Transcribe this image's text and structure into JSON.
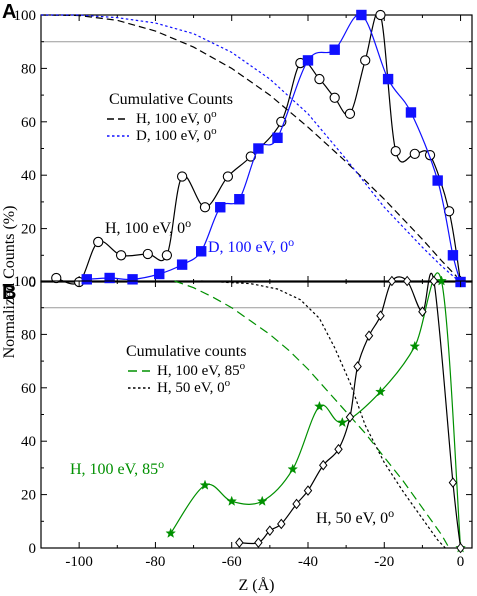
{
  "chart_data": [
    {
      "panel": "A",
      "type": "line",
      "xlim": [
        -110,
        3
      ],
      "ylim": [
        0,
        100
      ],
      "yticks": [
        0,
        20,
        40,
        60,
        80,
        100
      ],
      "reference_line_y": 90,
      "legend_title": "Cumulative Counts",
      "legend_placement": "center-left",
      "series": [
        {
          "name": "H, 100 eV, 0°",
          "kind": "cumulative",
          "style": "dashed",
          "color": "#000000",
          "points": [
            [
              -110,
              100
            ],
            [
              -100,
              99.8
            ],
            [
              -90,
              98
            ],
            [
              -80,
              94
            ],
            [
              -70,
              88
            ],
            [
              -60,
              80
            ],
            [
              -50,
              70
            ],
            [
              -40,
              58
            ],
            [
              -30,
              45
            ],
            [
              -20,
              31
            ],
            [
              -10,
              16
            ],
            [
              -5,
              8
            ],
            [
              -1,
              2
            ]
          ]
        },
        {
          "name": "D, 100 eV, 0°",
          "kind": "cumulative",
          "style": "dotted",
          "color": "#1010ff",
          "points": [
            [
              -110,
              100
            ],
            [
              -100,
              100
            ],
            [
              -90,
              99
            ],
            [
              -80,
              97
            ],
            [
              -70,
              93
            ],
            [
              -60,
              86
            ],
            [
              -50,
              76
            ],
            [
              -40,
              63
            ],
            [
              -30,
              46
            ],
            [
              -20,
              28
            ],
            [
              -10,
              13
            ],
            [
              -5,
              6
            ],
            [
              -1,
              1
            ]
          ]
        },
        {
          "name": "H, 100 eV, 0°",
          "kind": "distribution",
          "marker": "circle",
          "color": "#000000",
          "label": "H, 100 eV, 0",
          "label_sup": "o",
          "points": [
            [
              -106,
              1.5
            ],
            [
              -100,
              0
            ],
            [
              -95,
              15
            ],
            [
              -89,
              10
            ],
            [
              -82,
              10.5
            ],
            [
              -77,
              10
            ],
            [
              -73,
              39.5
            ],
            [
              -67,
              28
            ],
            [
              -61,
              39.5
            ],
            [
              -55,
              47
            ],
            [
              -47,
              60
            ],
            [
              -42,
              82
            ],
            [
              -37,
              76
            ],
            [
              -33,
              69
            ],
            [
              -29,
              63
            ],
            [
              -25,
              83
            ],
            [
              -21,
              100
            ],
            [
              -17,
              49
            ],
            [
              -12,
              48
            ],
            [
              -8,
              47.5
            ],
            [
              -3,
              26.5
            ],
            [
              0,
              0
            ]
          ]
        },
        {
          "name": "D, 100 eV, 0°",
          "kind": "distribution",
          "marker": "square",
          "color": "#1010ff",
          "label": "D, 100 eV, 0",
          "label_sup": "o",
          "points": [
            [
              -98,
              1
            ],
            [
              -92,
              1.5
            ],
            [
              -86,
              1
            ],
            [
              -79,
              3
            ],
            [
              -73,
              6.5
            ],
            [
              -68,
              11.5
            ],
            [
              -63,
              28
            ],
            [
              -58,
              31
            ],
            [
              -53,
              50
            ],
            [
              -48,
              54
            ],
            [
              -40,
              83
            ],
            [
              -33,
              87
            ],
            [
              -26,
              100
            ],
            [
              -19,
              76
            ],
            [
              -13,
              63.5
            ],
            [
              -6,
              38
            ],
            [
              -2,
              10
            ],
            [
              0,
              0
            ]
          ]
        }
      ]
    },
    {
      "panel": "B",
      "type": "line",
      "xlim": [
        -110,
        3
      ],
      "ylim": [
        0,
        100
      ],
      "xticks": [
        -100,
        -80,
        -60,
        -40,
        -20,
        0
      ],
      "yticks": [
        0,
        20,
        40,
        60,
        80,
        100
      ],
      "xlabel": "Z (Å)",
      "reference_line_y": 90,
      "legend_title": "Cumulative counts",
      "legend_placement": "top-left",
      "series": [
        {
          "name": "H, 100 eV, 85°",
          "kind": "cumulative",
          "style": "long-dashed",
          "color": "#009000",
          "points": [
            [
              -75,
              100
            ],
            [
              -70,
              97.5
            ],
            [
              -65,
              94
            ],
            [
              -60,
              90
            ],
            [
              -55,
              85
            ],
            [
              -50,
              80
            ],
            [
              -45,
              74
            ],
            [
              -40,
              67
            ],
            [
              -35,
              59
            ],
            [
              -30,
              51
            ],
            [
              -25,
              43
            ],
            [
              -20,
              34
            ],
            [
              -15,
              25
            ],
            [
              -10,
              15
            ],
            [
              -5,
              5
            ],
            [
              -3,
              0
            ]
          ]
        },
        {
          "name": "H, 50 eV, 0°",
          "kind": "cumulative",
          "style": "dotted",
          "color": "#000000",
          "points": [
            [
              -68,
              100
            ],
            [
              -55,
              99
            ],
            [
              -48,
              97
            ],
            [
              -42,
              93
            ],
            [
              -37,
              86
            ],
            [
              -33,
              75
            ],
            [
              -29,
              62
            ],
            [
              -25,
              46
            ],
            [
              -20,
              32
            ],
            [
              -15,
              21
            ],
            [
              -10,
              11
            ],
            [
              -6,
              3
            ],
            [
              -4,
              0
            ]
          ]
        },
        {
          "name": "H, 100 eV, 85°",
          "kind": "distribution",
          "marker": "star",
          "color": "#009000",
          "label": "H, 100 eV, 85",
          "label_sup": "o",
          "points": [
            [
              -76,
              5.5
            ],
            [
              -67,
              23.5
            ],
            [
              -60,
              17.5
            ],
            [
              -52,
              17.5
            ],
            [
              -44,
              29.5
            ],
            [
              -37,
              53
            ],
            [
              -31,
              47
            ],
            [
              -21,
              58.5
            ],
            [
              -12,
              75.5
            ],
            [
              -5,
              100
            ],
            [
              0,
              0
            ]
          ]
        },
        {
          "name": "H, 50 eV, 0°",
          "kind": "distribution",
          "marker": "diamond",
          "color": "#000000",
          "label": "H, 50 eV, 0",
          "label_sup": "o",
          "points": [
            [
              -58,
              2
            ],
            [
              -53,
              2
            ],
            [
              -50,
              6.5
            ],
            [
              -47,
              9
            ],
            [
              -43,
              16.5
            ],
            [
              -40,
              21.5
            ],
            [
              -36,
              31
            ],
            [
              -32,
              37
            ],
            [
              -29,
              49
            ],
            [
              -27,
              68
            ],
            [
              -24,
              79.5
            ],
            [
              -21,
              87
            ],
            [
              -18,
              100
            ],
            [
              -14,
              100
            ],
            [
              -10,
              88.5
            ],
            [
              -7,
              100
            ],
            [
              -2,
              24.5
            ],
            [
              0,
              0
            ]
          ]
        }
      ]
    }
  ],
  "axis_labels": {
    "y_shared": "Normalized Counts (%)"
  }
}
